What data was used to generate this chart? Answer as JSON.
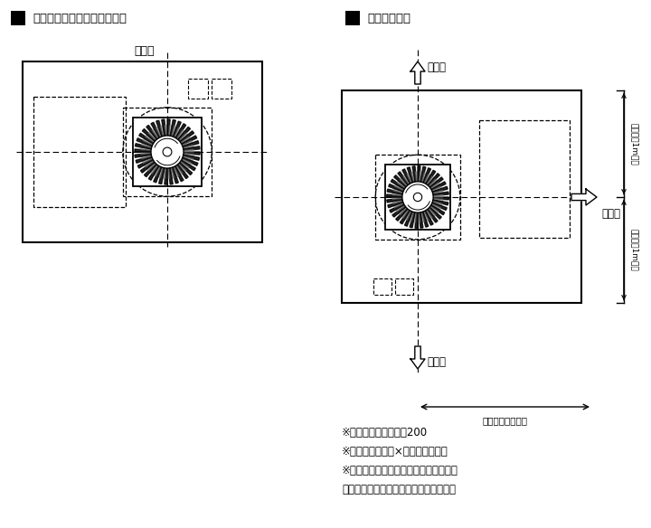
{
  "bg_color": "#ffffff",
  "title1": "壁・傾斜天井据付け時の方向",
  "title2": "本体設置位置",
  "label_up": "上方向",
  "label_fuki1": "吹出し",
  "label_fuki2": "吹出し",
  "label_fuki3": "吹出し",
  "label_kabe_bottom": "壁面から１ｍ以上",
  "label_kabe_top": "壁面から1m以上",
  "label_kabe_bot2": "壁面から1m以上",
  "footnote1": "※天井埋込穴寸法　ロ200",
  "footnote2": "※木ネジ（３．５×３２）４本同梱",
  "footnote3": "※天井材クリップ４個（同梱）を用いて",
  "footnote4": "　厚さ９～１２ｍｍの天井材への取付可"
}
